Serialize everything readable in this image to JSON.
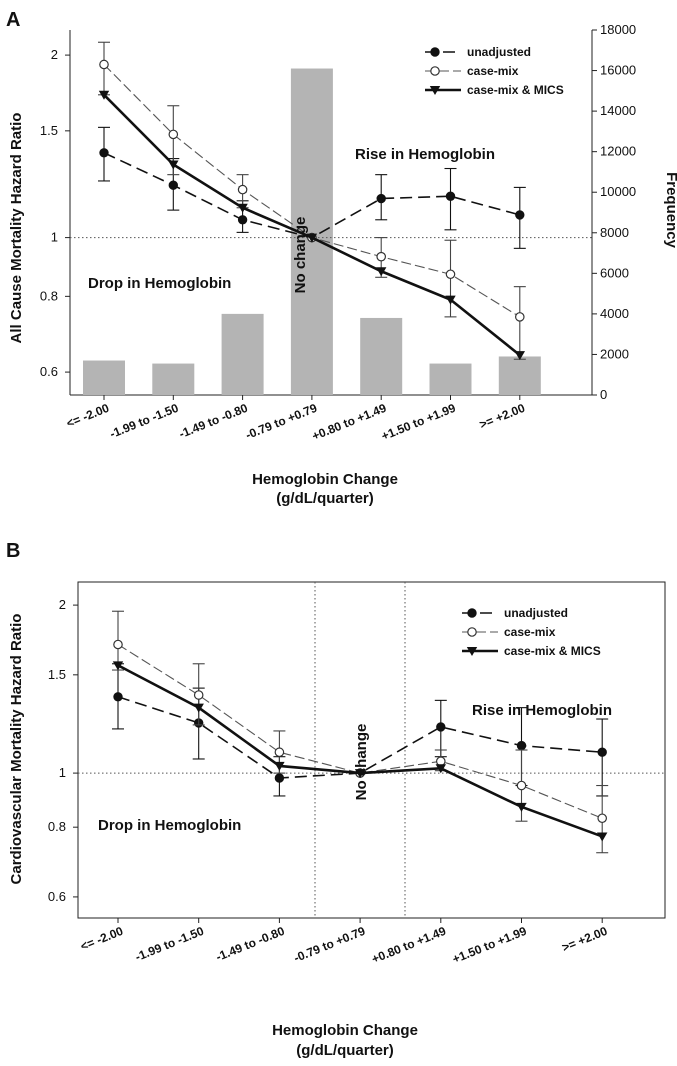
{
  "chart_data": [
    {
      "type": "line",
      "panel": "A",
      "categories": [
        "<= -2.00",
        "-1.99 to -1.50",
        "-1.49 to -0.80",
        "-0.79 to +0.79",
        "+0.80 to +1.49",
        "+1.50 to +1.99",
        ">= +2.00"
      ],
      "ylabel": "All Cause Mortality Hazard Ratio",
      "y2label": "Frequency",
      "xlabel_line1": "Hemoglobin Change",
      "xlabel_line2": "(g/dL/quarter)",
      "y_scale": "log",
      "ylim": [
        0.55,
        2.2
      ],
      "yticks": [
        0.6,
        0.8,
        1,
        1.5,
        2
      ],
      "y2lim": [
        0,
        18000
      ],
      "y2ticks": [
        0,
        2000,
        4000,
        6000,
        8000,
        10000,
        12000,
        14000,
        16000,
        18000
      ],
      "reference_line": 1,
      "legend_position": "top-right",
      "bars": {
        "name": "Frequency",
        "color": "#b4b4b4",
        "values": [
          1700,
          1550,
          4000,
          16100,
          3800,
          1550,
          1900
        ]
      },
      "series": [
        {
          "name": "unadjusted",
          "marker": "filled-circle",
          "line": "dashed-long",
          "values": [
            1.38,
            1.22,
            1.07,
            1.0,
            1.16,
            1.17,
            1.09
          ],
          "err_low": [
            1.24,
            1.11,
            1.02,
            1.0,
            1.07,
            1.03,
            0.96
          ],
          "err_high": [
            1.52,
            1.35,
            1.15,
            1.0,
            1.27,
            1.3,
            1.21
          ]
        },
        {
          "name": "case-mix",
          "marker": "open-circle",
          "line": "dashed-thin",
          "values": [
            1.93,
            1.48,
            1.2,
            1.0,
            0.93,
            0.87,
            0.74
          ],
          "err_low": [
            1.72,
            1.27,
            1.12,
            1.0,
            0.86,
            0.74,
            0.63
          ],
          "err_high": [
            2.1,
            1.65,
            1.27,
            1.0,
            1.0,
            0.99,
            0.83
          ]
        },
        {
          "name": "case-mix & MICS",
          "marker": "filled-triangle-down",
          "line": "solid-thick",
          "values": [
            1.72,
            1.32,
            1.12,
            1.0,
            0.88,
            0.79,
            0.64
          ],
          "err_low": [
            1.72,
            1.32,
            1.12,
            1.0,
            0.88,
            0.79,
            0.64
          ],
          "err_high": [
            1.72,
            1.32,
            1.12,
            1.0,
            0.88,
            0.79,
            0.64
          ]
        }
      ],
      "annotations": {
        "drop": "Drop in Hemoglobin",
        "rise": "Rise in Hemoglobin",
        "nochange": "No change"
      }
    },
    {
      "type": "line",
      "panel": "B",
      "categories": [
        "<= -2.00",
        "-1.99 to -1.50",
        "-1.49 to -0.80",
        "-0.79 to +0.79",
        "+0.80 to +1.49",
        "+1.50 to +1.99",
        ">= +2.00"
      ],
      "ylabel": "Cardiovascular Mortality Hazard Ratio",
      "xlabel_line1": "Hemoglobin Change",
      "xlabel_line2": "(g/dL/quarter)",
      "y_scale": "log",
      "ylim": [
        0.55,
        2.2
      ],
      "yticks": [
        0.6,
        0.8,
        1,
        1.5,
        2
      ],
      "reference_line": 1,
      "legend_position": "top-right",
      "series": [
        {
          "name": "unadjusted",
          "marker": "filled-circle",
          "line": "dashed-long",
          "values": [
            1.37,
            1.23,
            0.98,
            1.0,
            1.21,
            1.12,
            1.09
          ],
          "err_low": [
            1.2,
            1.06,
            0.91,
            1.0,
            1.07,
            0.95,
            0.91
          ],
          "err_high": [
            1.57,
            1.42,
            1.07,
            1.0,
            1.35,
            1.31,
            1.25
          ]
        },
        {
          "name": "case-mix",
          "marker": "open-circle",
          "line": "dashed-thin",
          "values": [
            1.7,
            1.38,
            1.09,
            1.0,
            1.05,
            0.95,
            0.83
          ],
          "err_low": [
            1.53,
            1.22,
            1.0,
            1.0,
            1.01,
            0.82,
            0.72
          ],
          "err_high": [
            1.95,
            1.57,
            1.19,
            1.0,
            1.1,
            1.1,
            0.95
          ]
        },
        {
          "name": "case-mix & MICS",
          "marker": "filled-triangle-down",
          "line": "solid-thick",
          "values": [
            1.56,
            1.31,
            1.03,
            1.0,
            1.02,
            0.87,
            0.77
          ],
          "err_low": [
            1.56,
            1.31,
            1.03,
            1.0,
            1.02,
            0.87,
            0.77
          ],
          "err_high": [
            1.56,
            1.31,
            1.03,
            1.0,
            1.02,
            0.87,
            0.77
          ]
        }
      ],
      "annotations": {
        "drop": "Drop in Hemoglobin",
        "rise": "Rise in Hemoglobin",
        "nochange": "No change"
      }
    }
  ]
}
